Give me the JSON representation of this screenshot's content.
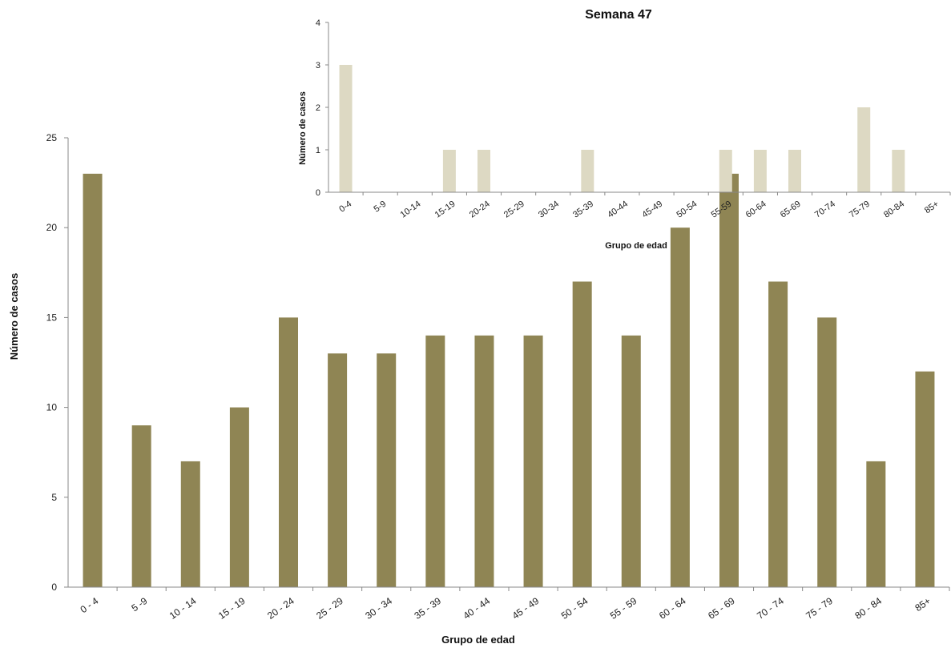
{
  "chart_data": [
    {
      "type": "bar",
      "title": "",
      "xlabel": "Grupo de edad",
      "ylabel": "Número de casos",
      "ylim": [
        0,
        25
      ],
      "yticks": [
        0,
        5,
        10,
        15,
        20,
        25
      ],
      "grid": false,
      "bar_color": "#8f8554",
      "categories": [
        "0 - 4",
        "5 -9",
        "10 - 14",
        "15 - 19",
        "20 - 24",
        "25 - 29",
        "30 - 34",
        "35 - 39",
        "40 - 44",
        "45 - 49",
        "50 - 54",
        "55 - 59",
        "60 - 64",
        "65 - 69",
        "70 - 74",
        "75 - 79",
        "80 - 84",
        "85+"
      ],
      "values": [
        23,
        9,
        7,
        10,
        15,
        13,
        13,
        14,
        14,
        14,
        17,
        14,
        20,
        23,
        17,
        15,
        7,
        12
      ]
    },
    {
      "type": "bar",
      "title": "Semana 47",
      "xlabel": "Grupo de edad",
      "ylabel": "Número de casos",
      "ylim": [
        0,
        4
      ],
      "yticks": [
        0,
        1,
        2,
        3,
        4
      ],
      "grid": false,
      "bar_color": "#ddd9c3",
      "categories": [
        "0-4",
        "5-9",
        "10-14",
        "15-19",
        "20-24",
        "25-29",
        "30-34",
        "35-39",
        "40-44",
        "45-49",
        "50-54",
        "55-59",
        "60-64",
        "65-69",
        "70-74",
        "75-79",
        "80-84",
        "85+"
      ],
      "values": [
        3,
        0,
        0,
        1,
        1,
        0,
        0,
        1,
        0,
        0,
        0,
        1,
        1,
        1,
        0,
        2,
        1,
        0
      ]
    }
  ]
}
